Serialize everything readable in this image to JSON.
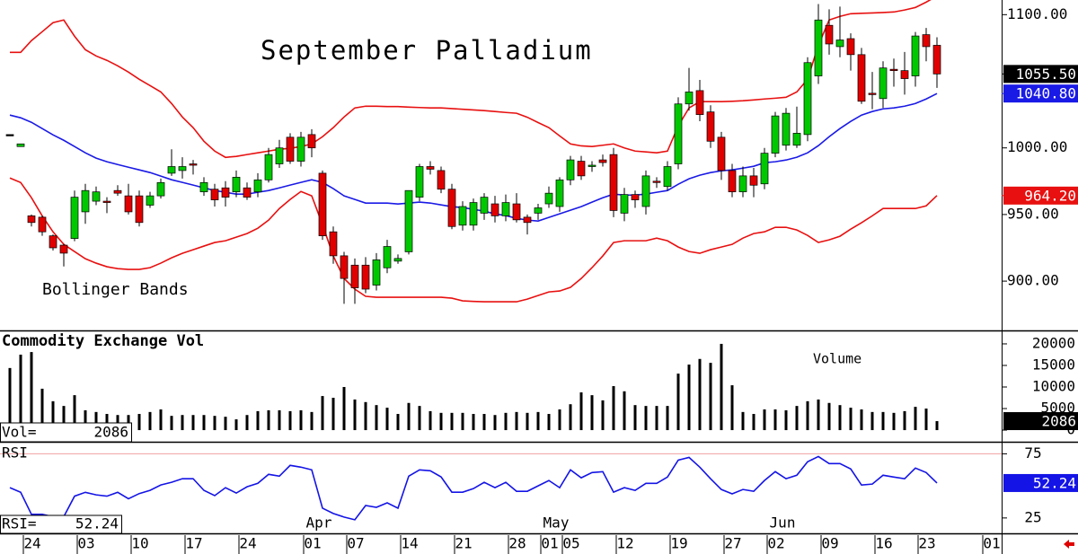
{
  "chart_data": [
    {
      "type": "candlestick",
      "title": "September Palladium",
      "annotation": "Bollinger Bands",
      "categories": [
        null,
        null,
        "24",
        null,
        null,
        null,
        null,
        "03",
        null,
        null,
        null,
        null,
        "10",
        null,
        null,
        null,
        null,
        "17",
        null,
        null,
        null,
        null,
        "24",
        null,
        null,
        null,
        null,
        null,
        "01",
        null,
        null,
        null,
        "07",
        null,
        null,
        null,
        null,
        "14",
        null,
        null,
        null,
        null,
        "21",
        null,
        null,
        null,
        null,
        "28",
        null,
        null,
        "01",
        null,
        "05",
        null,
        null,
        null,
        null,
        "12",
        null,
        null,
        null,
        null,
        "19",
        null,
        null,
        null,
        null,
        "27",
        null,
        null,
        null,
        "02",
        null,
        null,
        null,
        null,
        "09",
        null,
        null,
        null,
        null,
        "16",
        null,
        null,
        null,
        "23",
        null,
        null,
        null,
        null,
        null,
        "01"
      ],
      "months": [
        null,
        null,
        null,
        null,
        null,
        null,
        null,
        null,
        null,
        null,
        null,
        null,
        null,
        null,
        null,
        null,
        null,
        null,
        null,
        null,
        null,
        null,
        null,
        null,
        null,
        null,
        null,
        null,
        "Apr",
        null,
        null,
        null,
        null,
        null,
        null,
        null,
        null,
        null,
        null,
        null,
        null,
        null,
        null,
        null,
        null,
        null,
        null,
        null,
        null,
        null,
        "May",
        null,
        null,
        null,
        null,
        null,
        null,
        null,
        null,
        null,
        null,
        null,
        null,
        null,
        null,
        null,
        null,
        null,
        null,
        null,
        null,
        "Jun",
        null,
        null,
        null,
        null,
        null,
        null,
        null,
        null,
        null,
        null,
        null,
        null,
        null,
        null,
        null,
        null,
        null,
        null,
        null,
        null
      ],
      "open": [
        1010,
        1001,
        949,
        948,
        934,
        927,
        932,
        952,
        960,
        960,
        968,
        964,
        964,
        957,
        964,
        981,
        983,
        988,
        967,
        969,
        970,
        967,
        970,
        967,
        976,
        988,
        1008,
        990,
        1010,
        981,
        937,
        919,
        912,
        912,
        897,
        910,
        915,
        922,
        963,
        986,
        983,
        969,
        942,
        942,
        951,
        958,
        949,
        958,
        948,
        951,
        958,
        956,
        976,
        990,
        986,
        991,
        995,
        951,
        965,
        956,
        975,
        971,
        988,
        1033,
        1043,
        1027,
        1008,
        983,
        967,
        979,
        973,
        996,
        1002,
        1002,
        1010,
        1054,
        1092,
        1076,
        1082,
        1070,
        1041,
        1037,
        1059,
        1058,
        1054,
        1085,
        1077,
        null,
        null,
        null,
        null,
        null
      ],
      "high": [
        1010,
        1003,
        950,
        949,
        935,
        928,
        968,
        973,
        971,
        963,
        972,
        973,
        968,
        967,
        977,
        999,
        993,
        991,
        978,
        973,
        975,
        983,
        974,
        981,
        1000,
        1006,
        1011,
        1012,
        1014,
        983,
        941,
        922,
        917,
        918,
        921,
        931,
        920,
        968,
        988,
        990,
        986,
        973,
        960,
        962,
        966,
        964,
        965,
        966,
        950,
        958,
        971,
        978,
        994,
        994,
        990,
        995,
        1000,
        970,
        968,
        983,
        978,
        990,
        1038,
        1060,
        1051,
        1032,
        1012,
        988,
        986,
        985,
        1000,
        1027,
        1030,
        1031,
        1068,
        1108,
        1104,
        1106,
        1086,
        1075,
        1057,
        1065,
        1067,
        1072,
        1087,
        1090,
        1083,
        null,
        null,
        null,
        null,
        null
      ],
      "low": [
        1010,
        1001,
        941,
        934,
        923,
        911,
        930,
        943,
        957,
        951,
        964,
        950,
        941,
        955,
        962,
        979,
        977,
        980,
        964,
        956,
        956,
        963,
        961,
        963,
        974,
        985,
        988,
        986,
        993,
        931,
        913,
        883,
        883,
        891,
        893,
        906,
        913,
        920,
        960,
        980,
        966,
        939,
        938,
        938,
        946,
        944,
        945,
        944,
        935,
        946,
        955,
        952,
        972,
        976,
        982,
        986,
        948,
        945,
        955,
        950,
        970,
        968,
        984,
        1028,
        1020,
        1000,
        976,
        963,
        963,
        963,
        969,
        993,
        998,
        1000,
        1005,
        1048,
        1070,
        1068,
        1058,
        1033,
        1029,
        1030,
        1046,
        1040,
        1046,
        1065,
        1045,
        null,
        null,
        null,
        null,
        null
      ],
      "close": [
        1010,
        1003,
        944,
        937,
        925,
        921,
        963,
        968,
        967,
        959,
        966,
        952,
        944,
        964,
        974,
        986,
        986,
        987,
        974,
        961,
        963,
        978,
        963,
        976,
        995,
        1000,
        990,
        1008,
        1000,
        934,
        919,
        902,
        895,
        894,
        916,
        926,
        917,
        968,
        986,
        984,
        969,
        941,
        956,
        959,
        963,
        949,
        959,
        946,
        944,
        955,
        966,
        976,
        991,
        979,
        987,
        989,
        953,
        965,
        961,
        979,
        974,
        986,
        1033,
        1042,
        1025,
        1005,
        983,
        967,
        979,
        972,
        996,
        1024,
        1026,
        1011,
        1064,
        1096,
        1078,
        1081,
        1070,
        1035,
        1040,
        1060,
        1058,
        1052,
        1084,
        1076,
        1055.5,
        null,
        null,
        null,
        null,
        null
      ],
      "last_label": "1055.50",
      "up_color": "#00c800",
      "down_color": "#e00000",
      "last_color": "#000000",
      "ylim": [
        863,
        1111
      ],
      "yticks": [
        {
          "value": 900,
          "label": "900.00"
        },
        {
          "value": 950,
          "label": "950.00"
        },
        {
          "value": 1000,
          "label": "1000.00"
        },
        {
          "value": 1100,
          "label": "1100.00"
        }
      ],
      "bands": {
        "upper": {
          "color": "#e81010",
          "values": [
            1071.7,
            1071.7,
            1080.5,
            1087.2,
            1094,
            1096,
            1083.8,
            1073.7,
            1069,
            1065.7,
            1061.6,
            1056.9,
            1051.5,
            1046.8,
            1042,
            1033.3,
            1023.2,
            1015.2,
            1005,
            997.6,
            992.9,
            993.6,
            995,
            996.3,
            997.6,
            999,
            999.7,
            1001,
            1003,
            1008.4,
            1015.2,
            1023.2,
            1030,
            1031.3,
            1031.3,
            1031,
            1031,
            1030.6,
            1030.3,
            1030,
            1030,
            1029.5,
            1029,
            1028.5,
            1028,
            1027.3,
            1026.6,
            1026,
            1023,
            1019,
            1015.2,
            1009,
            1003,
            1001.5,
            1001,
            1002,
            1003,
            1000,
            997.6,
            997,
            996.3,
            997.6,
            1016.5,
            1030,
            1034.7,
            1034.7,
            1034.7,
            1035,
            1035.4,
            1036,
            1036.7,
            1037.3,
            1038,
            1042,
            1051.5,
            1077.1,
            1096,
            1098.7,
            1100.7,
            1101,
            1101.3,
            1101.6,
            1102,
            1103.5,
            1105.4,
            1109.4,
            1114,
            null,
            null,
            null,
            null,
            null
          ]
        },
        "middle": {
          "color": "#1a1ae6",
          "last_label": "1040.80",
          "values": [
            1024.6,
            1022.6,
            1019.2,
            1014.5,
            1009.8,
            1005.7,
            1001,
            996.3,
            992.3,
            989.6,
            987.5,
            985.5,
            983.5,
            981.5,
            978.8,
            976.1,
            974.1,
            972.1,
            970,
            968,
            966.7,
            965.3,
            965.3,
            966.7,
            968,
            970,
            972.1,
            974.1,
            976.1,
            974.1,
            969.4,
            964,
            961.3,
            958.6,
            958.6,
            958.6,
            957.9,
            958.6,
            959.3,
            958.6,
            957.2,
            955.9,
            955.2,
            953.9,
            952.5,
            950.5,
            949.2,
            947.1,
            945.8,
            945.1,
            947.8,
            950.5,
            953.2,
            955.9,
            959.3,
            962.6,
            965.3,
            964.6,
            964.6,
            965.3,
            966.7,
            968,
            972.7,
            976.8,
            979.5,
            981.5,
            982.8,
            983.5,
            984.8,
            986.2,
            988.9,
            989.6,
            990.9,
            993,
            996.3,
            1001.7,
            1008.4,
            1014.5,
            1019.9,
            1024.6,
            1027.3,
            1029.3,
            1030,
            1031.3,
            1033.3,
            1036.7,
            1040.8,
            null,
            null,
            null,
            null,
            null
          ]
        },
        "lower": {
          "color": "#e81010",
          "last_label": "964.20",
          "values": [
            977.4,
            974,
            962.6,
            949,
            937,
            927.6,
            922.2,
            916.8,
            913.5,
            910.8,
            909.4,
            908.8,
            908.8,
            910.1,
            913.5,
            917.5,
            920.9,
            923.6,
            926.3,
            929,
            930.3,
            933,
            935.7,
            939.7,
            945.8,
            954.5,
            961.3,
            967.3,
            964,
            942.4,
            918.9,
            902,
            894,
            888.6,
            887.9,
            887.9,
            887.9,
            887.9,
            887.9,
            887.9,
            887.9,
            887.2,
            885.2,
            884.8,
            884.5,
            884.5,
            884.5,
            884.5,
            886.5,
            889.2,
            891.9,
            892.6,
            895.3,
            902,
            910.1,
            918.9,
            929,
            930.3,
            930.3,
            930.3,
            932.3,
            930.3,
            925.6,
            922.2,
            920.9,
            923.6,
            925.6,
            927.6,
            932.3,
            935.7,
            937,
            940.4,
            940.4,
            938.4,
            934.3,
            929,
            931,
            933.7,
            939,
            943.8,
            949,
            954.5,
            954.5,
            954.5,
            954.5,
            956.5,
            964.2,
            null,
            null,
            null,
            null,
            null
          ]
        }
      }
    },
    {
      "type": "bar",
      "title": "Commodity Exchange Vol",
      "annotation": "Volume",
      "readout_label": "Vol=",
      "color": "#000000",
      "values": [
        14400,
        17500,
        18100,
        9600,
        6700,
        5600,
        8100,
        4600,
        4200,
        3750,
        3500,
        3500,
        3750,
        4200,
        4800,
        3300,
        3500,
        3500,
        3500,
        3300,
        3100,
        2500,
        3500,
        4400,
        4600,
        4600,
        4400,
        4600,
        4200,
        7900,
        7500,
        10000,
        7100,
        6500,
        5800,
        5200,
        3750,
        6300,
        5600,
        4400,
        4000,
        4000,
        4000,
        3750,
        3750,
        3500,
        4000,
        4200,
        4000,
        4200,
        3750,
        4800,
        6000,
        8750,
        8100,
        6900,
        10200,
        9000,
        5800,
        5600,
        5600,
        5600,
        13100,
        15200,
        16500,
        15600,
        20000,
        10400,
        4200,
        3750,
        4800,
        4800,
        4600,
        5600,
        6700,
        7100,
        6300,
        5800,
        5200,
        4800,
        4200,
        4200,
        4000,
        4400,
        5400,
        5000,
        2086,
        null,
        null,
        null,
        null,
        null
      ],
      "ylim": [
        -2700,
        22700
      ],
      "yticks": [
        0,
        5000,
        10000,
        15000,
        20000
      ]
    },
    {
      "type": "line",
      "title": "RSI",
      "readout_label": "RSI=",
      "color": "#1414e6",
      "grid_color": "#f0a0a0",
      "values": [
        48.6,
        45,
        27.8,
        27.8,
        26,
        26,
        42,
        45,
        43,
        42,
        45,
        40,
        44,
        46.5,
        50.7,
        52.8,
        55.6,
        55.6,
        46.5,
        42.4,
        48.6,
        44.4,
        49.3,
        52,
        59,
        57.6,
        66,
        64.6,
        62.5,
        32.6,
        28.5,
        25.7,
        23.6,
        34.7,
        33.3,
        36.8,
        32.6,
        57.6,
        62.5,
        61.8,
        57,
        45.1,
        45.1,
        47.9,
        52.8,
        48.6,
        52.8,
        45.8,
        45.8,
        50,
        54.2,
        48.6,
        62.5,
        56.3,
        60.4,
        61.1,
        45.1,
        48.6,
        46.5,
        52,
        52,
        56.9,
        70.1,
        72.2,
        64.6,
        55.6,
        47.2,
        43.8,
        47.2,
        45.8,
        54.2,
        61.1,
        55.6,
        58.3,
        68.8,
        72.9,
        67.4,
        67.4,
        63.2,
        50.7,
        51.4,
        58.3,
        56.9,
        55.6,
        63.9,
        60.4,
        52.24,
        null,
        null,
        null,
        null,
        null
      ],
      "ylim": [
        13,
        83
      ],
      "yticks": [
        25,
        75
      ],
      "grid": [
        75
      ]
    }
  ]
}
